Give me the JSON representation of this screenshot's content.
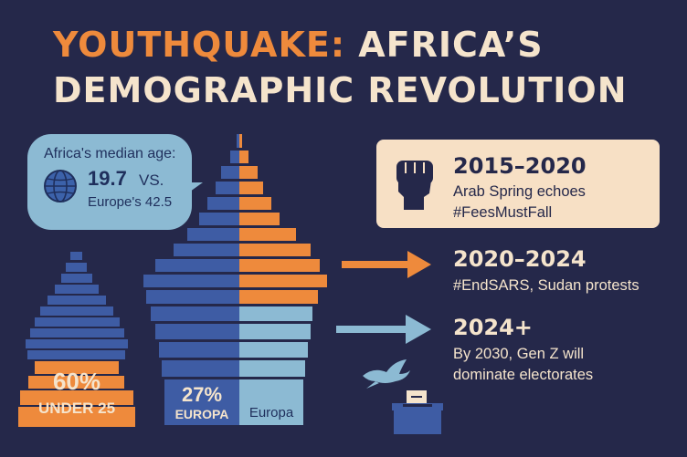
{
  "title": {
    "accent": "YOUTHQUAKE:",
    "line1_rest": " AFRICA’S",
    "line2": "DEMOGRAPHIC REVOLUTION"
  },
  "median_age": {
    "label": "Africa's median age:",
    "africa_value": "19.7",
    "vs": "VS.",
    "europe_text": "Europe's 42.5"
  },
  "africa_pyramid": {
    "stat": "60%",
    "caption": "UNDER 25"
  },
  "europe_pyramid": {
    "stat": "27%",
    "stat_caption": "EUROPA",
    "label": "Europa"
  },
  "timeline": [
    {
      "period": "2015–2020",
      "lines": [
        "Arab Spring echoes",
        "#FeesMustFall"
      ]
    },
    {
      "period": "2020–2024",
      "lines": [
        "#EndSARS, Sudan protests"
      ]
    },
    {
      "period": "2024+",
      "lines": [
        "By 2030, Gen Z will",
        "dominate electorates"
      ]
    }
  ],
  "icons": [
    "globe-icon",
    "raised-fist-icon",
    "dove-icon",
    "ballot-box-icon",
    "arrow-right-icon"
  ],
  "colors": {
    "background": "#25284a",
    "orange": "#ee8a3c",
    "blue": "#3e5ca4",
    "light_blue": "#8cbad3",
    "cream": "#f5e4cc"
  }
}
